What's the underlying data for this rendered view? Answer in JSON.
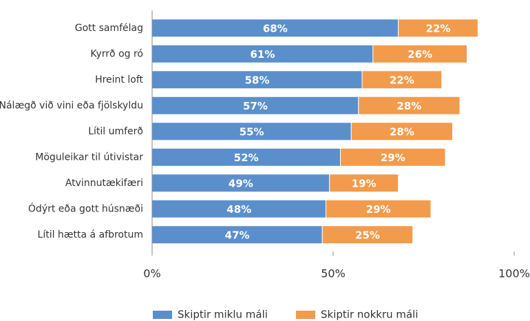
{
  "chart_data": {
    "type": "bar",
    "orientation": "horizontal",
    "stacked": true,
    "categories": [
      "Gott samfélag",
      "Kyrrð og ró",
      "Hreint loft",
      "Nálægð við vini eða fjölskyldu",
      "Lítil umferð",
      "Möguleikar til útivistar",
      "Atvinnutækifæri",
      "Ódýrt eða gott húsnæði",
      "Lítil hætta á afbrotum"
    ],
    "series": [
      {
        "name": "Skiptir miklu máli",
        "color": "#5b8fcc",
        "values": [
          68,
          61,
          58,
          57,
          55,
          52,
          49,
          48,
          47
        ],
        "value_labels": [
          "68%",
          "61%",
          "58%",
          "57%",
          "55%",
          "52%",
          "49%",
          "48%",
          "47%"
        ]
      },
      {
        "name": "Skiptir nokkru máli",
        "color": "#f29b4c",
        "values": [
          22,
          26,
          22,
          28,
          28,
          29,
          19,
          29,
          25
        ],
        "value_labels": [
          "22%",
          "26%",
          "22%",
          "28%",
          "28%",
          "29%",
          "19%",
          "29%",
          "25%"
        ]
      }
    ],
    "xlim": [
      0,
      100
    ],
    "xticks": [
      {
        "value": 0,
        "label": "0%"
      },
      {
        "value": 50,
        "label": "50%"
      },
      {
        "value": 100,
        "label": "100%"
      }
    ],
    "legend": "bottom"
  }
}
